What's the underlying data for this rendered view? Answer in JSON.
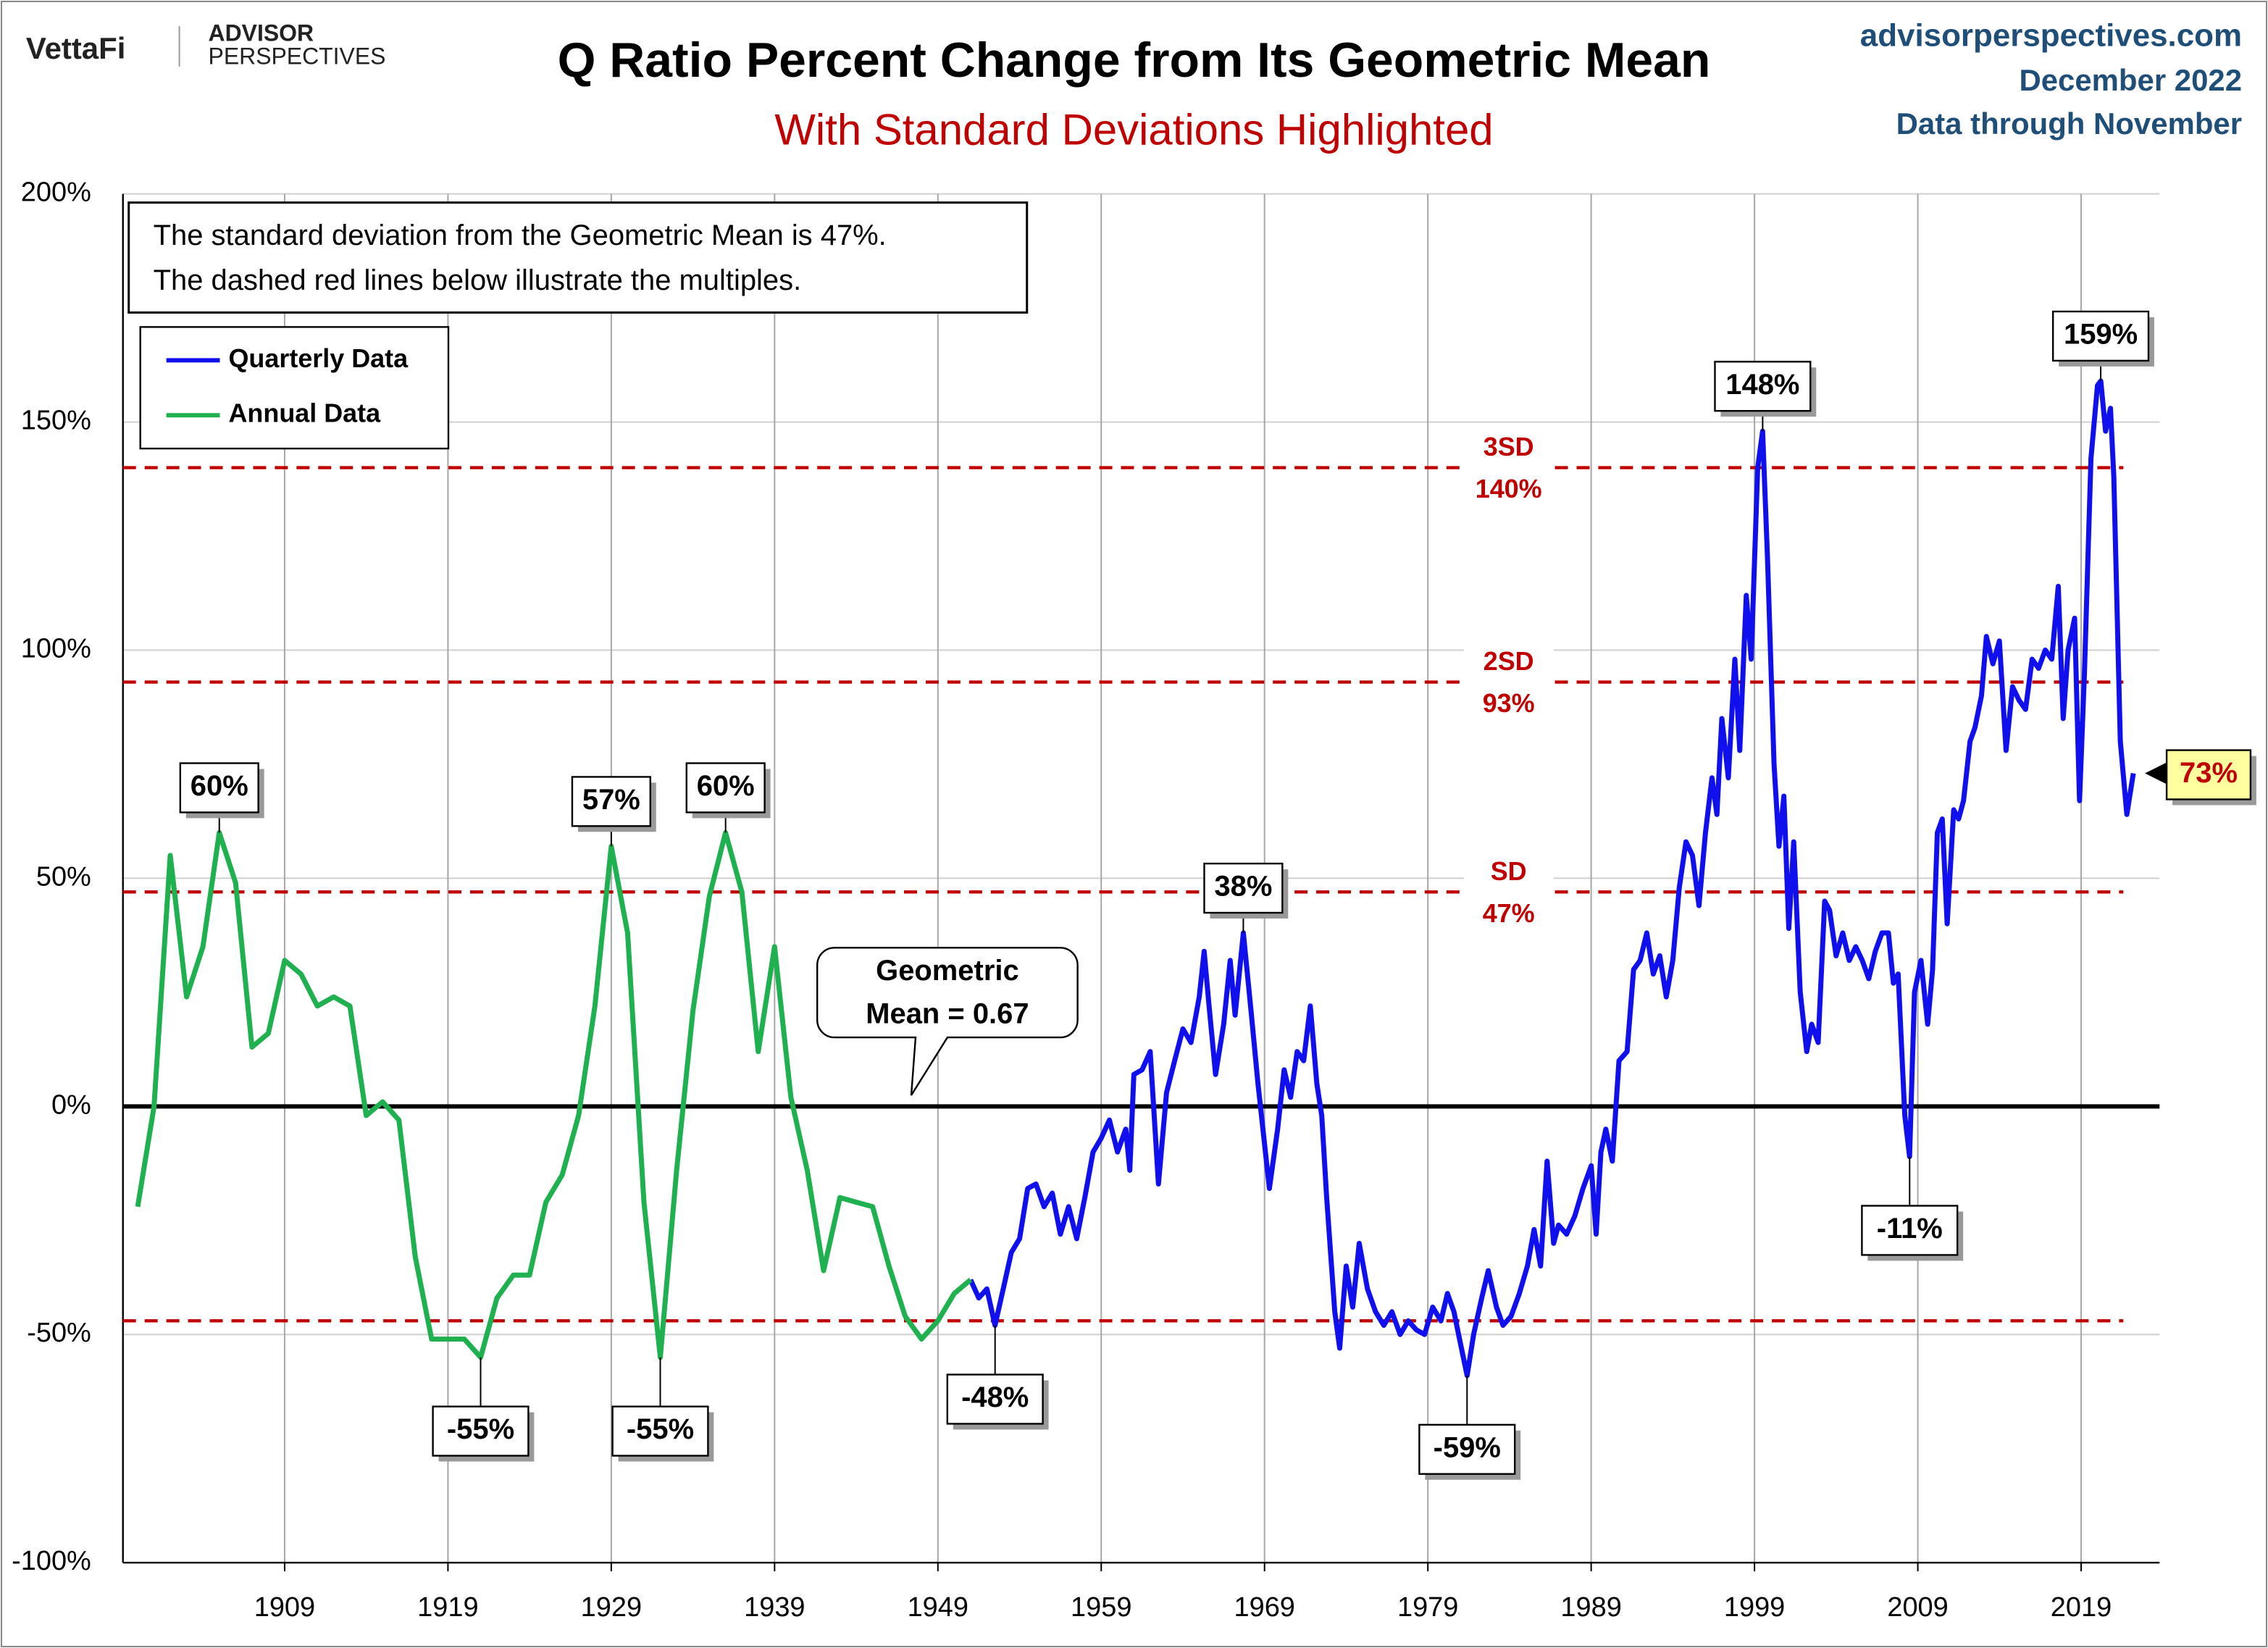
{
  "header": {
    "brand": "VettaFi",
    "brand2_line1": "ADVISOR",
    "brand2_line2": "PERSPECTIVES",
    "site": "advisorperspectives.com",
    "date": "December 2022",
    "data_through": "Data through November"
  },
  "chart_data": {
    "type": "line",
    "title": "Q Ratio Percent Change from Its Geometric Mean",
    "subtitle": "With Standard Deviations Highlighted",
    "info_box": [
      "The standard deviation from the Geometric Mean is 47%.",
      "The dashed red lines below illustrate the multiples."
    ],
    "mean_callout": [
      "Geometric",
      "Mean = 0.67"
    ],
    "xlim": [
      1899.1,
      2023.8
    ],
    "xticks": [
      1909,
      1919,
      1929,
      1939,
      1949,
      1959,
      1969,
      1979,
      1989,
      1999,
      2009,
      2019
    ],
    "ylim": [
      -100,
      200
    ],
    "yticks": [
      {
        "value": -100,
        "label": "-100%"
      },
      {
        "value": -50,
        "label": "-50%"
      },
      {
        "value": 0,
        "label": "0%"
      },
      {
        "value": 50,
        "label": "50%"
      },
      {
        "value": 100,
        "label": "100%"
      },
      {
        "value": 150,
        "label": "150%"
      },
      {
        "value": 200,
        "label": "200%"
      }
    ],
    "grid": true,
    "series": [
      {
        "name": "Quarterly Data",
        "color": "#1010ee",
        "x": [
          1951.0,
          1951.5,
          1952.0,
          1952.5,
          1953.0,
          1953.5,
          1954.0,
          1954.5,
          1955.0,
          1955.5,
          1956.0,
          1956.5,
          1957.0,
          1957.5,
          1958.0,
          1958.5,
          1959.0,
          1959.5,
          1960.0,
          1960.5,
          1960.75,
          1961.0,
          1961.5,
          1962.0,
          1962.5,
          1963.0,
          1963.5,
          1964.0,
          1964.5,
          1965.0,
          1965.3,
          1965.6,
          1966.0,
          1966.5,
          1966.9,
          1967.2,
          1967.7,
          1968.2,
          1968.6,
          1969.3,
          1969.8,
          1970.2,
          1970.6,
          1971.0,
          1971.4,
          1971.8,
          1972.2,
          1972.5,
          1972.8,
          1973.3,
          1973.6,
          1974.0,
          1974.4,
          1974.8,
          1975.3,
          1975.8,
          1976.3,
          1976.8,
          1977.3,
          1977.8,
          1978.3,
          1978.8,
          1979.3,
          1979.8,
          1980.2,
          1980.6,
          1981.0,
          1981.4,
          1981.8,
          1982.3,
          1982.7,
          1983.2,
          1983.6,
          1984.1,
          1984.6,
          1985.1,
          1985.5,
          1985.9,
          1986.3,
          1986.7,
          1987.0,
          1987.5,
          1988.0,
          1988.5,
          1989.0,
          1989.3,
          1989.6,
          1989.9,
          1990.3,
          1990.7,
          1991.2,
          1991.6,
          1992.0,
          1992.4,
          1992.8,
          1993.2,
          1993.6,
          1994.0,
          1994.4,
          1994.8,
          1995.2,
          1995.6,
          1996.0,
          1996.4,
          1996.7,
          1997.0,
          1997.4,
          1997.8,
          1998.1,
          1998.5,
          1998.8,
          1999.2,
          1999.5,
          1999.8,
          2000.2,
          2000.5,
          2000.8,
          2001.1,
          2001.4,
          2001.8,
          2002.2,
          2002.5,
          2002.9,
          2003.3,
          2003.6,
          2004.0,
          2004.4,
          2004.8,
          2005.2,
          2005.6,
          2006.0,
          2006.4,
          2006.8,
          2007.2,
          2007.5,
          2007.8,
          2008.2,
          2008.5,
          2008.8,
          2009.2,
          2009.6,
          2009.9,
          2010.2,
          2010.5,
          2010.8,
          2011.2,
          2011.5,
          2011.8,
          2012.2,
          2012.5,
          2012.9,
          2013.2,
          2013.6,
          2014.0,
          2014.4,
          2014.8,
          2015.2,
          2015.6,
          2016.0,
          2016.4,
          2016.8,
          2017.2,
          2017.6,
          2017.9,
          2018.2,
          2018.6,
          2018.9,
          2019.2,
          2019.6,
          2020.0,
          2020.2,
          2020.5,
          2020.8,
          2021.0,
          2021.4,
          2021.8,
          2022.2
        ],
        "values": [
          -38,
          -42,
          -40,
          -48,
          -40,
          -32,
          -29,
          -18,
          -17,
          -22,
          -19,
          -28,
          -22,
          -29,
          -20,
          -10,
          -7,
          -3,
          -10,
          -5,
          -14,
          7,
          8,
          12,
          -17,
          3,
          10,
          17,
          14,
          24,
          34,
          22,
          7,
          18,
          32,
          20,
          38,
          20,
          5,
          -18,
          -5,
          8,
          2,
          12,
          10,
          22,
          5,
          -2,
          -20,
          -45,
          -53,
          -35,
          -44,
          -30,
          -40,
          -45,
          -48,
          -45,
          -50,
          -47,
          -49,
          -50,
          -44,
          -47,
          -41,
          -45,
          -52,
          -59,
          -50,
          -42,
          -36,
          -44,
          -48,
          -46,
          -41,
          -35,
          -27,
          -35,
          -12,
          -30,
          -26,
          -28,
          -24,
          -18,
          -13,
          -28,
          -10,
          -5,
          -12,
          10,
          12,
          30,
          32,
          38,
          29,
          33,
          24,
          32,
          48,
          58,
          55,
          44,
          60,
          72,
          64,
          85,
          72,
          98,
          78,
          112,
          98,
          140,
          148,
          120,
          75,
          57,
          68,
          39,
          58,
          25,
          12,
          18,
          14,
          45,
          43,
          33,
          38,
          32,
          35,
          32,
          28,
          34,
          38,
          38,
          27,
          29,
          -2,
          -11,
          25,
          32,
          18,
          30,
          60,
          63,
          40,
          65,
          63,
          67,
          80,
          83,
          90,
          103,
          97,
          102,
          78,
          92,
          89,
          87,
          98,
          96,
          100,
          98,
          114,
          85,
          100,
          107,
          67,
          95,
          142,
          158,
          159,
          148,
          153,
          138,
          80,
          64,
          73
        ]
      },
      {
        "name": "Annual Data",
        "color": "#1fb050",
        "x": [
          1900,
          1901,
          1902,
          1903,
          1904,
          1905,
          1906,
          1907,
          1908,
          1909,
          1910,
          1911,
          1912,
          1913,
          1914,
          1915,
          1916,
          1917,
          1918,
          1919,
          1920,
          1921,
          1922,
          1923,
          1924,
          1925,
          1926,
          1927,
          1928,
          1929,
          1930,
          1931,
          1932,
          1933,
          1934,
          1935,
          1936,
          1937,
          1938,
          1939,
          1940,
          1941,
          1942,
          1943,
          1944,
          1945,
          1946,
          1947,
          1948,
          1949,
          1950,
          1951
        ],
        "values": [
          -22,
          0,
          55,
          24,
          35,
          60,
          49,
          13,
          16,
          32,
          29,
          22,
          24,
          22,
          -2,
          1,
          -3,
          -33,
          -51,
          -51,
          -51,
          -55,
          -42,
          -37,
          -37,
          -21,
          -15,
          -2,
          22,
          57,
          38,
          -21,
          -55,
          -14,
          21,
          46,
          60,
          47,
          12,
          35,
          2,
          -14,
          -36,
          -20,
          -21,
          -22,
          -35,
          -46,
          -51,
          -47,
          -41,
          -38
        ]
      }
    ],
    "mean_line": 0,
    "sd_lines": [
      {
        "name": "3SD",
        "value": 140,
        "label": "140%"
      },
      {
        "name": "2SD",
        "value": 93,
        "label": "93%"
      },
      {
        "name": "SD",
        "value": 47,
        "label": "47%"
      },
      {
        "value": -47
      }
    ],
    "annotations": [
      {
        "label": "60%",
        "x": 1905,
        "value": 60
      },
      {
        "label": "-55%",
        "x": 1921,
        "value": -55
      },
      {
        "label": "57%",
        "x": 1929,
        "value": 57
      },
      {
        "label": "-55%",
        "x": 1932,
        "value": -55
      },
      {
        "label": "60%",
        "x": 1936,
        "value": 60
      },
      {
        "label": "-48%",
        "x": 1952.5,
        "value": -48
      },
      {
        "label": "38%",
        "x": 1967.7,
        "value": 38
      },
      {
        "label": "-59%",
        "x": 1981.4,
        "value": -59
      },
      {
        "label": "148%",
        "x": 1999.5,
        "value": 148
      },
      {
        "label": "-11%",
        "x": 2008.5,
        "value": -11
      },
      {
        "label": "159%",
        "x": 2020.2,
        "value": 159
      }
    ],
    "current": {
      "label": "73%",
      "x": 2022.2,
      "value": 73
    }
  }
}
